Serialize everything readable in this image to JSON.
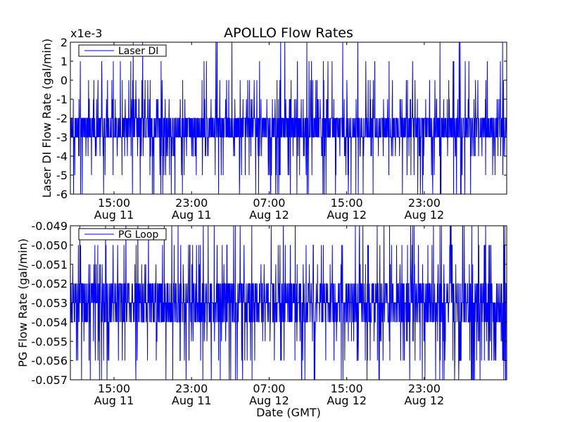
{
  "title": "APOLLO Flow Rates",
  "colors": {
    "series": "#0000ff",
    "axes": "#000000",
    "background": "#ffffff"
  },
  "chart_data": [
    {
      "type": "line",
      "id": "laser",
      "title": "APOLLO Flow Rates",
      "ylabel": "Laser DI Flow Rate (gal/min)",
      "xlabel": "",
      "offset_text": "x1e-3",
      "ylim": [
        -6,
        2
      ],
      "y_ticks": [
        -6,
        -5,
        -4,
        -3,
        -2,
        -1,
        0,
        1,
        2
      ],
      "y_tick_labels": [
        "-6",
        "-5",
        "-4",
        "-3",
        "-2",
        "-1",
        "0",
        "1",
        "2"
      ],
      "x_range_hours": [
        0,
        45
      ],
      "x_ticks_hours": [
        4.5,
        12.5,
        20.5,
        28.5,
        36.5
      ],
      "x_tick_labels": [
        [
          "15:00",
          "Aug 11"
        ],
        [
          "23:00",
          "Aug 11"
        ],
        [
          "07:00",
          "Aug 12"
        ],
        [
          "15:00",
          "Aug 12"
        ],
        [
          "23:00",
          "Aug 12"
        ]
      ],
      "legend": [
        "Laser DI"
      ],
      "legend_location": "upper-left",
      "series": [
        {
          "name": "Laser DI",
          "baseline": -2.5,
          "typical_range": [
            -4,
            -1
          ],
          "min": -6,
          "max": 2,
          "step": 1,
          "sample_count": 1800
        }
      ]
    },
    {
      "type": "line",
      "id": "pg",
      "title": "",
      "ylabel": "PG Flow Rate (gal/min)",
      "xlabel": "Date (GMT)",
      "offset_text": "",
      "ylim": [
        -0.057,
        -0.049
      ],
      "y_ticks": [
        -0.057,
        -0.056,
        -0.055,
        -0.054,
        -0.053,
        -0.052,
        -0.051,
        -0.05,
        -0.049
      ],
      "y_tick_labels": [
        "-0.057",
        "-0.056",
        "-0.055",
        "-0.054",
        "-0.053",
        "-0.052",
        "-0.051",
        "-0.050",
        "-0.049"
      ],
      "x_range_hours": [
        0,
        45
      ],
      "x_ticks_hours": [
        4.5,
        12.5,
        20.5,
        28.5,
        36.5
      ],
      "x_tick_labels": [
        [
          "15:00",
          "Aug 11"
        ],
        [
          "23:00",
          "Aug 11"
        ],
        [
          "07:00",
          "Aug 12"
        ],
        [
          "15:00",
          "Aug 12"
        ],
        [
          "23:00",
          "Aug 12"
        ]
      ],
      "legend": [
        "PG Loop"
      ],
      "legend_location": "upper-left",
      "series": [
        {
          "name": "PG Loop",
          "baseline": -0.0533,
          "typical_range": [
            -0.055,
            -0.051
          ],
          "min": -0.057,
          "max": -0.049,
          "step": 0.001,
          "sample_count": 1800
        }
      ]
    }
  ]
}
